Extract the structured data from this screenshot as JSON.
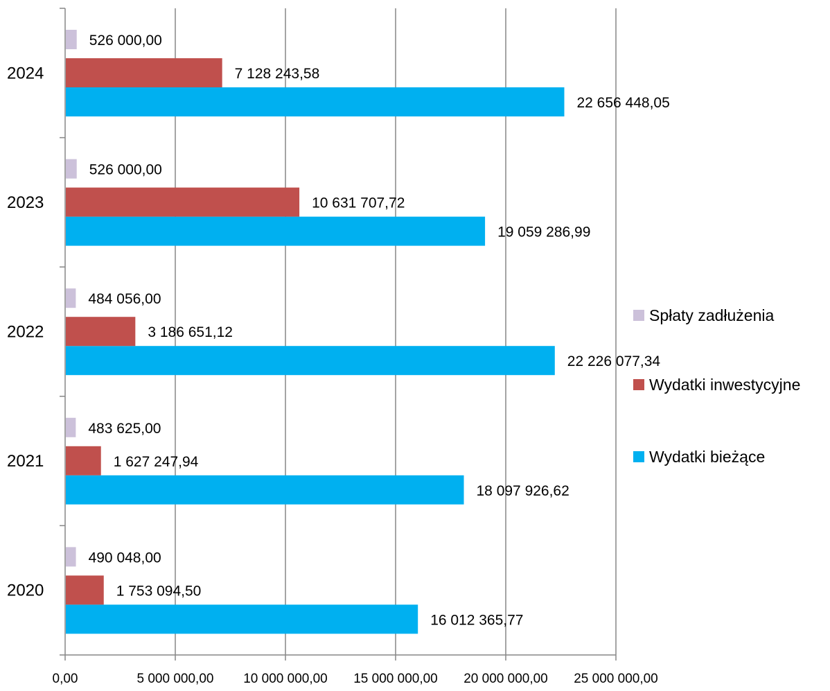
{
  "chart_data": {
    "type": "bar",
    "orientation": "horizontal",
    "categories": [
      "2020",
      "2021",
      "2022",
      "2023",
      "2024"
    ],
    "series": [
      {
        "name": "Wydatki bieżące",
        "color": "#00B0F0",
        "values": [
          16012365.77,
          18097926.62,
          22226077.34,
          19059286.99,
          22656448.05
        ],
        "labels": [
          "16 012 365,77",
          "18 097 926,62",
          "22 226 077,34",
          "19 059 286,99",
          "22 656 448,05"
        ]
      },
      {
        "name": "Wydatki inwestycyjne",
        "color": "#C0504D",
        "values": [
          1753094.5,
          1627247.94,
          3186651.12,
          10631707.72,
          7128243.58
        ],
        "labels": [
          "1 753 094,50",
          "1 627 247,94",
          "3 186 651,12",
          "10 631 707,72",
          "7 128 243,58"
        ]
      },
      {
        "name": "Spłaty zadłużenia",
        "color": "#CCC1DA",
        "values": [
          490048.0,
          483625.0,
          484056.0,
          526000.0,
          526000.0
        ],
        "labels": [
          "490 048,00",
          "483 625,00",
          "484 056,00",
          "526 000,00",
          "526 000,00"
        ]
      }
    ],
    "xlim": [
      0,
      25000000
    ],
    "x_ticks": [
      0,
      5000000,
      10000000,
      15000000,
      20000000,
      25000000
    ],
    "x_tick_labels": [
      "0,00",
      "5 000 000,00",
      "10 000 000,00",
      "15 000 000,00",
      "20 000 000,00",
      "25 000 000,00"
    ],
    "grid": "vertical",
    "legend_position": "right",
    "legend_order": [
      "Spłaty zadłużenia",
      "Wydatki inwestycyjne",
      "Wydatki bieżące"
    ],
    "title": "",
    "xlabel": "",
    "ylabel": ""
  }
}
